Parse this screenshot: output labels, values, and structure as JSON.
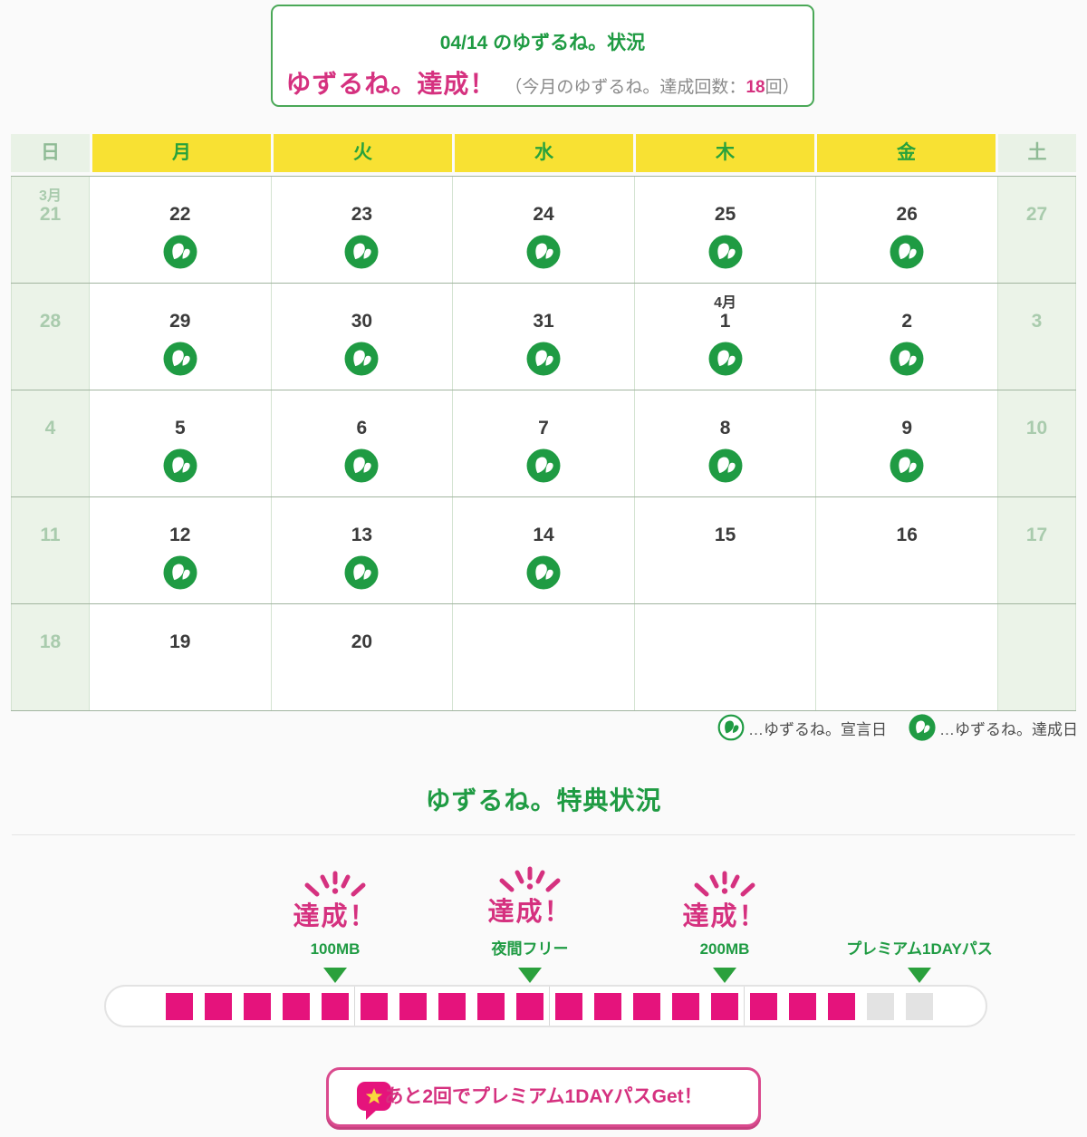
{
  "status_card": {
    "title": "04/14 のゆずるね。状況",
    "result": "ゆずるね。達成！",
    "detail_prefix": "（今月のゆずるね。達成回数：",
    "detail_count": "18",
    "detail_suffix": "回）"
  },
  "calendar": {
    "day_headers": [
      "日",
      "月",
      "火",
      "水",
      "木",
      "金",
      "土"
    ],
    "weeks": [
      [
        {
          "date": "21",
          "month": "3月"
        },
        {
          "date": "22",
          "icon": "achieved"
        },
        {
          "date": "23",
          "icon": "achieved"
        },
        {
          "date": "24",
          "icon": "achieved"
        },
        {
          "date": "25",
          "icon": "achieved"
        },
        {
          "date": "26",
          "icon": "achieved"
        },
        {
          "date": "27"
        }
      ],
      [
        {
          "date": "28"
        },
        {
          "date": "29",
          "icon": "achieved"
        },
        {
          "date": "30",
          "icon": "achieved"
        },
        {
          "date": "31",
          "icon": "achieved"
        },
        {
          "date": "1",
          "month": "4月",
          "icon": "achieved"
        },
        {
          "date": "2",
          "icon": "achieved"
        },
        {
          "date": "3"
        }
      ],
      [
        {
          "date": "4"
        },
        {
          "date": "5",
          "icon": "achieved"
        },
        {
          "date": "6",
          "icon": "achieved"
        },
        {
          "date": "7",
          "icon": "achieved"
        },
        {
          "date": "8",
          "icon": "achieved"
        },
        {
          "date": "9",
          "icon": "achieved"
        },
        {
          "date": "10"
        }
      ],
      [
        {
          "date": "11"
        },
        {
          "date": "12",
          "icon": "achieved"
        },
        {
          "date": "13",
          "icon": "achieved"
        },
        {
          "date": "14",
          "icon": "achieved"
        },
        {
          "date": "15"
        },
        {
          "date": "16"
        },
        {
          "date": "17"
        }
      ],
      [
        {
          "date": "18"
        },
        {
          "date": "19"
        },
        {
          "date": "20"
        },
        {},
        {},
        {},
        {}
      ]
    ]
  },
  "legend": {
    "declared_icon": "sprout-outline-icon",
    "declared_label": "…ゆずるね。宣言日",
    "achieved_icon": "sprout-filled-icon",
    "achieved_label": "…ゆずるね。達成日"
  },
  "rewards": {
    "heading": "ゆずるね。特典状況",
    "milestones": [
      {
        "achieved": true,
        "achieved_label": "達成！",
        "label": "100MB"
      },
      {
        "achieved": true,
        "achieved_label": "達成！",
        "label": "夜間フリー"
      },
      {
        "achieved": true,
        "achieved_label": "達成！",
        "label": "200MB"
      },
      {
        "achieved": false,
        "achieved_label": "",
        "label": "プレミアム1DAYパス"
      }
    ],
    "progress": {
      "total": 20,
      "filled": 18,
      "group_size": 5
    }
  },
  "footer_banner": {
    "icon": "speech-bubble-star-icon",
    "text": "あと2回でプレミアム1DAYパスGet！"
  },
  "colors": {
    "green": "#1f9b43",
    "yellow": "#f8e133",
    "pink": "#e5137c",
    "pink_text": "#d5317f",
    "weekend_bg": "#ebf3e8",
    "weekend_text": "#a9cbad",
    "empty_square": "#e3e3e3"
  }
}
